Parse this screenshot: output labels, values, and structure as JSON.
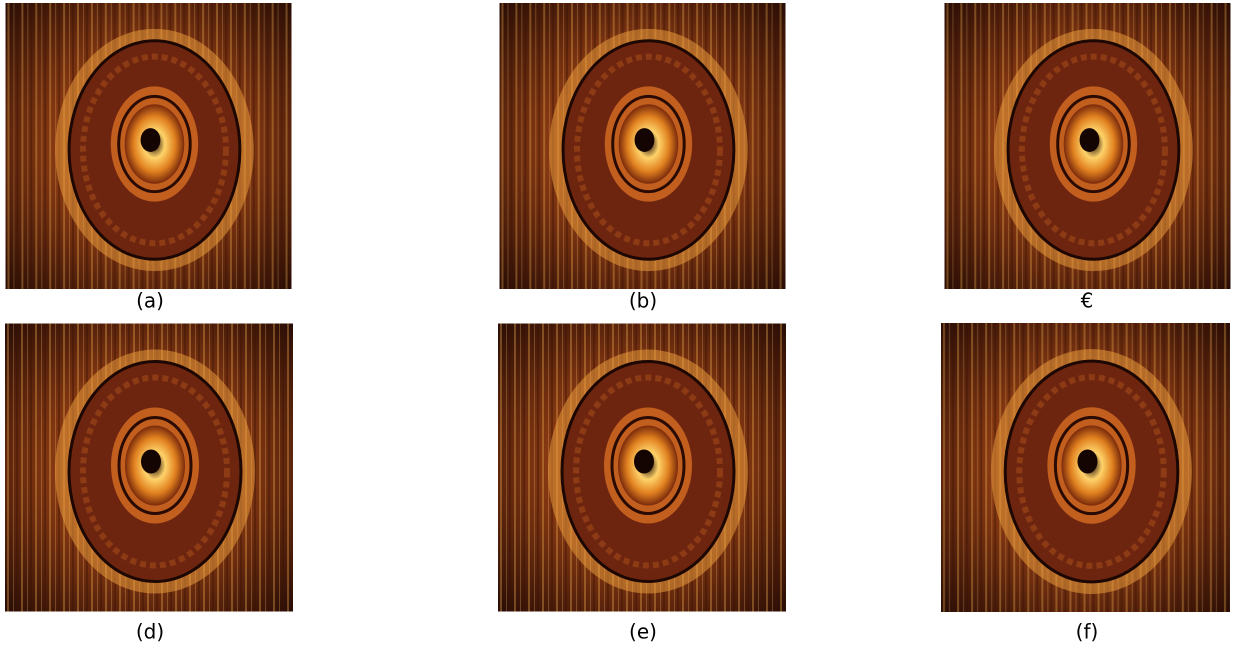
{
  "figure": {
    "panels": [
      {
        "label": "(a)"
      },
      {
        "label": "(b)"
      },
      {
        "label": "€"
      },
      {
        "label": "(d)"
      },
      {
        "label": "(e)"
      },
      {
        "label": "(f)"
      }
    ]
  }
}
